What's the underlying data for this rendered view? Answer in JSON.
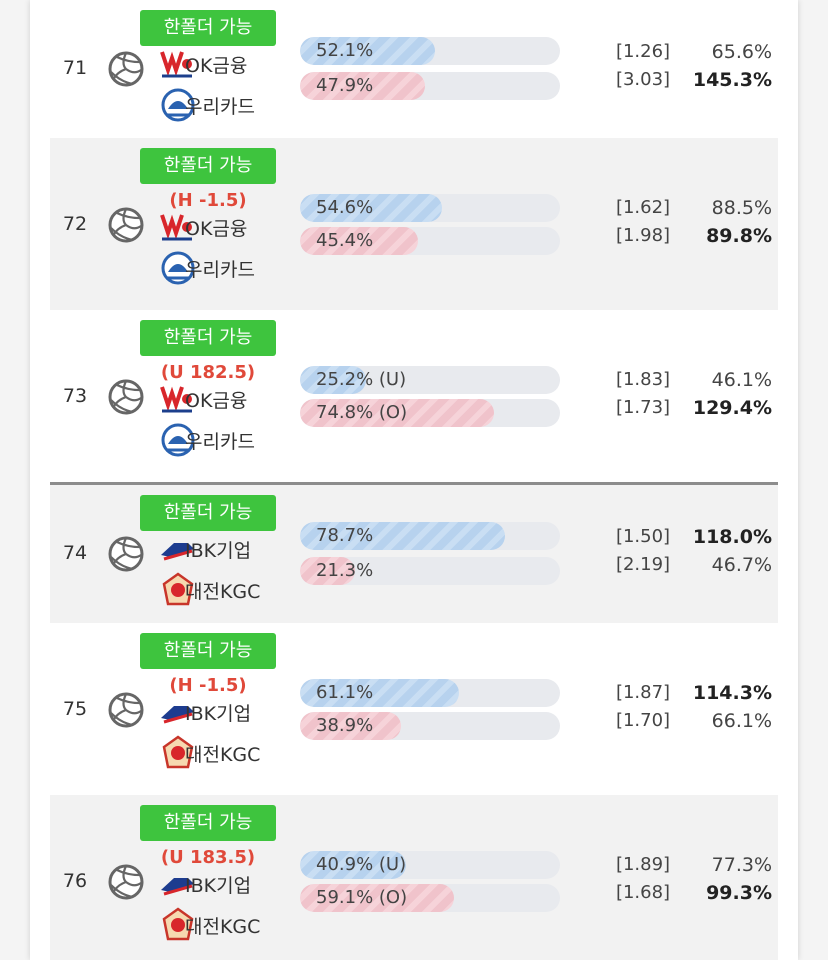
{
  "rows": [
    {
      "no": "71",
      "badge": "한폴더 가능",
      "teams": [
        "OK금융",
        "우리카드"
      ],
      "bars": [
        {
          "value": 52.1,
          "label": "52.1%"
        },
        {
          "value": 47.9,
          "label": "47.9%"
        }
      ],
      "odds": [
        "[1.26]",
        "[3.03]"
      ],
      "rates": [
        "65.6%",
        "145.3%"
      ],
      "bold": 1
    },
    {
      "no": "72",
      "badge": "한폴더 가능",
      "handicap": "(H -1.5)",
      "teams": [
        "OK금융",
        "우리카드"
      ],
      "bars": [
        {
          "value": 54.6,
          "label": "54.6%"
        },
        {
          "value": 45.4,
          "label": "45.4%"
        }
      ],
      "odds": [
        "[1.62]",
        "[1.98]"
      ],
      "rates": [
        "88.5%",
        "89.8%"
      ],
      "bold": 1
    },
    {
      "no": "73",
      "badge": "한폴더 가능",
      "handicap": "(U 182.5)",
      "teams": [
        "OK금융",
        "우리카드"
      ],
      "bars": [
        {
          "value": 25.2,
          "label": "25.2% (U)"
        },
        {
          "value": 74.8,
          "label": "74.8% (O)"
        }
      ],
      "odds": [
        "[1.83]",
        "[1.73]"
      ],
      "rates": [
        "46.1%",
        "129.4%"
      ],
      "bold": 1
    },
    {
      "no": "74",
      "badge": "한폴더 가능",
      "teams": [
        "IBK기업",
        "대전KGC"
      ],
      "bars": [
        {
          "value": 78.7,
          "label": "78.7%"
        },
        {
          "value": 21.3,
          "label": "21.3%"
        }
      ],
      "odds": [
        "[1.50]",
        "[2.19]"
      ],
      "rates": [
        "118.0%",
        "46.7%"
      ],
      "bold": 0
    },
    {
      "no": "75",
      "badge": "한폴더 가능",
      "handicap": "(H -1.5)",
      "teams": [
        "IBK기업",
        "대전KGC"
      ],
      "bars": [
        {
          "value": 61.1,
          "label": "61.1%"
        },
        {
          "value": 38.9,
          "label": "38.9%"
        }
      ],
      "odds": [
        "[1.87]",
        "[1.70]"
      ],
      "rates": [
        "114.3%",
        "66.1%"
      ],
      "bold": 0
    },
    {
      "no": "76",
      "badge": "한폴더 가능",
      "handicap": "(U 183.5)",
      "teams": [
        "IBK기업",
        "대전KGC"
      ],
      "bars": [
        {
          "value": 40.9,
          "label": "40.9% (U)"
        },
        {
          "value": 59.1,
          "label": "59.1% (O)"
        }
      ],
      "odds": [
        "[1.89]",
        "[1.68]"
      ],
      "rates": [
        "77.3%",
        "99.3%"
      ],
      "bold": 1
    }
  ]
}
